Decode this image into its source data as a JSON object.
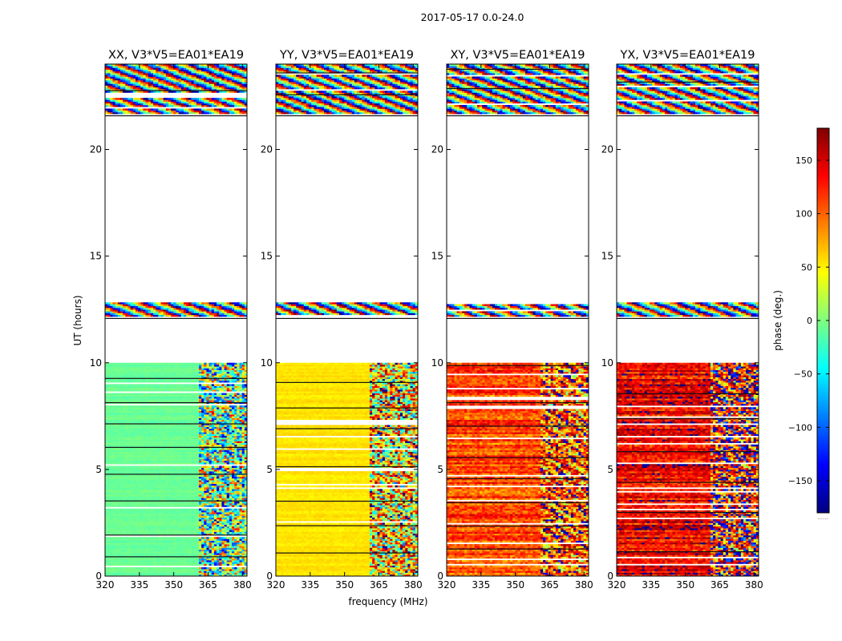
{
  "chart_data": {
    "type": "heatmap",
    "title": "2017-05-17 0.0-24.0",
    "xlabel": "frequency (MHz)",
    "ylabel": "UT (hours)",
    "xlim": [
      320,
      382
    ],
    "ylim": [
      0,
      24
    ],
    "x_ticks": [
      320,
      335,
      350,
      365,
      380
    ],
    "y_ticks": [
      0,
      5,
      10,
      15,
      20
    ],
    "colorbar": {
      "label": "phase (deg.)",
      "range": [
        -180,
        180
      ],
      "ticks": [
        -150,
        -100,
        -50,
        0,
        50,
        100,
        150
      ],
      "tick_labels": [
        "−150",
        "−100",
        "−50",
        "0",
        "50",
        "100",
        "150"
      ],
      "colormap": "jet",
      "colors": [
        "#00007f",
        "#0000ff",
        "#007fff",
        "#00ffff",
        "#7fff7f",
        "#ffff00",
        "#ff7f00",
        "#ff0000",
        "#7f0000"
      ],
      "under_text": "......"
    },
    "panels": [
      {
        "title": "XX, V3*V5=EA01*EA19",
        "base_phase": -8,
        "noise": 10,
        "split_freq": 361,
        "split_noise": 120
      },
      {
        "title": "YY, V3*V5=EA01*EA19",
        "base_phase": 55,
        "noise": 10,
        "split_freq": 361,
        "split_noise": 120
      },
      {
        "title": "XY, V3*V5=EA01*EA19",
        "base_phase": 110,
        "noise": 50,
        "split_freq": 361,
        "split_noise": 90
      },
      {
        "title": "YX, V3*V5=EA01*EA19",
        "base_phase": 140,
        "noise": 60,
        "split_freq": 361,
        "split_noise": 110
      }
    ],
    "data_ranges_hours": [
      [
        0,
        10
      ],
      [
        12.1,
        12.8
      ],
      [
        21.6,
        24
      ]
    ],
    "empty_ranges_hours": [
      [
        10,
        12.1
      ],
      [
        12.8,
        21.6
      ]
    ]
  }
}
